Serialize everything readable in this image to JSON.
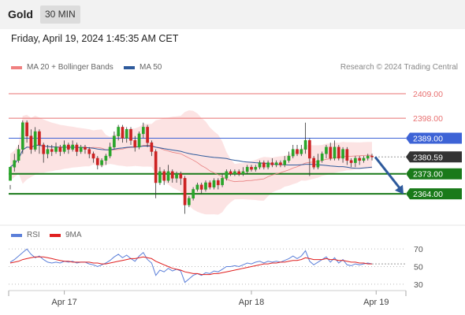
{
  "header": {
    "instrument": "Gold",
    "timeframe": "30 MIN"
  },
  "datetime": "Friday, April 19, 2024 1:45:35 AM CET",
  "credit": "Research © 2024 Trading Central",
  "legend": {
    "main": [
      {
        "label": "MA 20 + Bollinger Bands",
        "color": "#f08080"
      },
      {
        "label": "MA 50",
        "color": "#2e5a9c"
      }
    ],
    "rsi": [
      {
        "label": "RSI",
        "color": "#5b7fd9"
      },
      {
        "label": "9MA",
        "color": "#e02020"
      }
    ]
  },
  "colors": {
    "up": "#2aa52a",
    "down": "#cc2222",
    "resistance": "#e87070",
    "pivot": "#3d63d6",
    "support": "#1a7a1a",
    "last": "#333333",
    "arrow": "#2e5a9c",
    "bands": "#fbdcdc"
  },
  "chart_data": [
    {
      "type": "candlestick",
      "yrange": [
        2352,
        2420
      ],
      "x_labels": [
        "Apr 17",
        "Apr 18",
        "Apr 19"
      ],
      "levels": [
        {
          "label": "2409.00",
          "value": 2409.0,
          "kind": "resistance"
        },
        {
          "label": "2398.00",
          "value": 2398.0,
          "kind": "resistance"
        },
        {
          "label": "2389.00",
          "value": 2389.0,
          "kind": "pivot"
        },
        {
          "label": "2380.59",
          "value": 2380.59,
          "kind": "last"
        },
        {
          "label": "2373.00",
          "value": 2373.0,
          "kind": "support"
        },
        {
          "label": "2364.00",
          "value": 2364.0,
          "kind": "support"
        }
      ],
      "forecast_arrow": {
        "from": 2380.59,
        "to": 2364.5
      },
      "candles": [
        [
          2370,
          2376,
          2368,
          2366
        ],
        [
          2376,
          2379,
          2382,
          2374
        ],
        [
          2379,
          2384,
          2386,
          2378
        ],
        [
          2384,
          2396,
          2397,
          2382
        ],
        [
          2396,
          2390,
          2397,
          2387
        ],
        [
          2390,
          2384,
          2393,
          2382
        ],
        [
          2384,
          2392,
          2394,
          2383
        ],
        [
          2392,
          2386,
          2393,
          2382
        ],
        [
          2386,
          2382,
          2387,
          2378
        ],
        [
          2382,
          2384,
          2386,
          2380
        ],
        [
          2384,
          2383,
          2386,
          2381
        ],
        [
          2383,
          2385,
          2387,
          2382
        ],
        [
          2385,
          2383,
          2386,
          2381
        ],
        [
          2383,
          2386,
          2388,
          2382
        ],
        [
          2386,
          2384,
          2387,
          2382
        ],
        [
          2384,
          2386,
          2388,
          2383
        ],
        [
          2386,
          2383,
          2387,
          2381
        ],
        [
          2383,
          2385,
          2386,
          2382
        ],
        [
          2385,
          2384,
          2386,
          2382
        ],
        [
          2384,
          2382,
          2385,
          2380
        ],
        [
          2382,
          2380,
          2383,
          2378
        ],
        [
          2380,
          2377,
          2381,
          2375
        ],
        [
          2377,
          2379,
          2380,
          2376
        ],
        [
          2379,
          2381,
          2382,
          2377
        ],
        [
          2381,
          2385,
          2387,
          2380
        ],
        [
          2385,
          2390,
          2392,
          2384
        ],
        [
          2390,
          2394,
          2395,
          2388
        ],
        [
          2394,
          2389,
          2395,
          2387
        ],
        [
          2389,
          2393,
          2394,
          2387
        ],
        [
          2393,
          2388,
          2394,
          2386
        ],
        [
          2388,
          2385,
          2390,
          2383
        ],
        [
          2385,
          2391,
          2392,
          2384
        ],
        [
          2391,
          2394,
          2396,
          2389
        ],
        [
          2394,
          2387,
          2395,
          2385
        ],
        [
          2387,
          2383,
          2388,
          2381
        ],
        [
          2383,
          2369,
          2384,
          2362
        ],
        [
          2369,
          2374,
          2376,
          2368
        ],
        [
          2374,
          2370,
          2375,
          2368
        ],
        [
          2370,
          2374,
          2377,
          2369
        ],
        [
          2374,
          2371,
          2375,
          2369
        ],
        [
          2371,
          2373,
          2374,
          2369
        ],
        [
          2373,
          2371,
          2374,
          2368
        ],
        [
          2371,
          2359,
          2372,
          2355
        ],
        [
          2359,
          2362,
          2363,
          2358
        ],
        [
          2362,
          2366,
          2367,
          2361
        ],
        [
          2366,
          2368,
          2369,
          2365
        ],
        [
          2368,
          2366,
          2369,
          2364
        ],
        [
          2366,
          2369,
          2370,
          2365
        ],
        [
          2369,
          2367,
          2370,
          2366
        ],
        [
          2367,
          2370,
          2371,
          2366
        ],
        [
          2370,
          2368,
          2371,
          2366
        ],
        [
          2368,
          2371,
          2373,
          2367
        ],
        [
          2371,
          2374,
          2375,
          2370
        ],
        [
          2374,
          2373,
          2375,
          2372
        ],
        [
          2373,
          2374,
          2375,
          2372
        ],
        [
          2374,
          2373,
          2375,
          2372
        ],
        [
          2373,
          2374,
          2376,
          2372
        ],
        [
          2374,
          2376,
          2377,
          2373
        ],
        [
          2376,
          2375,
          2377,
          2374
        ],
        [
          2375,
          2376,
          2377,
          2374
        ],
        [
          2376,
          2378,
          2379,
          2375
        ],
        [
          2378,
          2376,
          2379,
          2375
        ],
        [
          2376,
          2378,
          2379,
          2375
        ],
        [
          2378,
          2377,
          2380,
          2376
        ],
        [
          2377,
          2378,
          2379,
          2376
        ],
        [
          2378,
          2377,
          2379,
          2376
        ],
        [
          2377,
          2379,
          2381,
          2376
        ],
        [
          2379,
          2381,
          2383,
          2378
        ],
        [
          2381,
          2384,
          2386,
          2380
        ],
        [
          2384,
          2382,
          2386,
          2381
        ],
        [
          2382,
          2384,
          2386,
          2381
        ],
        [
          2384,
          2388,
          2396,
          2382
        ],
        [
          2388,
          2380,
          2389,
          2372
        ],
        [
          2380,
          2376,
          2381,
          2375
        ],
        [
          2376,
          2379,
          2382,
          2375
        ],
        [
          2379,
          2382,
          2383,
          2378
        ],
        [
          2382,
          2385,
          2386,
          2380
        ],
        [
          2385,
          2380,
          2387,
          2379
        ],
        [
          2380,
          2385,
          2388,
          2379
        ],
        [
          2385,
          2380,
          2386,
          2379
        ],
        [
          2380,
          2384,
          2385,
          2378
        ],
        [
          2384,
          2379,
          2385,
          2377
        ],
        [
          2379,
          2378,
          2380,
          2376
        ],
        [
          2378,
          2380,
          2381,
          2376
        ],
        [
          2380,
          2379,
          2381,
          2377
        ],
        [
          2379,
          2380,
          2381,
          2378
        ],
        [
          2380,
          2381,
          2382,
          2379
        ],
        [
          2381,
          2380.59,
          2382,
          2379
        ]
      ]
    },
    {
      "type": "line",
      "title": "RSI",
      "yrange": [
        20,
        80
      ],
      "y_ticks": [
        70,
        50,
        30
      ],
      "series": [
        {
          "name": "RSI",
          "values": [
            55,
            58,
            62,
            66,
            70,
            64,
            60,
            62,
            58,
            55,
            54,
            55,
            54,
            56,
            55,
            56,
            54,
            55,
            55,
            53,
            52,
            50,
            52,
            54,
            57,
            61,
            64,
            60,
            63,
            59,
            56,
            62,
            66,
            58,
            54,
            40,
            46,
            44,
            48,
            45,
            47,
            45,
            32,
            36,
            40,
            42,
            40,
            43,
            42,
            45,
            44,
            47,
            50,
            50,
            51,
            50,
            52,
            54,
            53,
            55,
            56,
            54,
            56,
            55,
            56,
            55,
            57,
            59,
            62,
            59,
            62,
            68,
            56,
            52,
            55,
            58,
            61,
            55,
            60,
            54,
            58,
            52,
            51,
            53,
            52,
            53,
            54,
            53
          ]
        },
        {
          "name": "9MA",
          "values": [
            54,
            55,
            56,
            58,
            59,
            60,
            61,
            61,
            61,
            60,
            59,
            58,
            57,
            56,
            56,
            55,
            55,
            55,
            55,
            55,
            54,
            54,
            53,
            53,
            54,
            55,
            56,
            57,
            58,
            59,
            59,
            60,
            61,
            60,
            59,
            56,
            54,
            52,
            50,
            48,
            47,
            46,
            44,
            43,
            42,
            42,
            41,
            41,
            41,
            42,
            42,
            43,
            44,
            45,
            46,
            47,
            48,
            49,
            50,
            51,
            52,
            53,
            53,
            54,
            54,
            55,
            55,
            56,
            57,
            57,
            58,
            60,
            59,
            58,
            58,
            58,
            59,
            58,
            58,
            57,
            57,
            56,
            55,
            55,
            54,
            54,
            53,
            53
          ]
        }
      ]
    }
  ]
}
